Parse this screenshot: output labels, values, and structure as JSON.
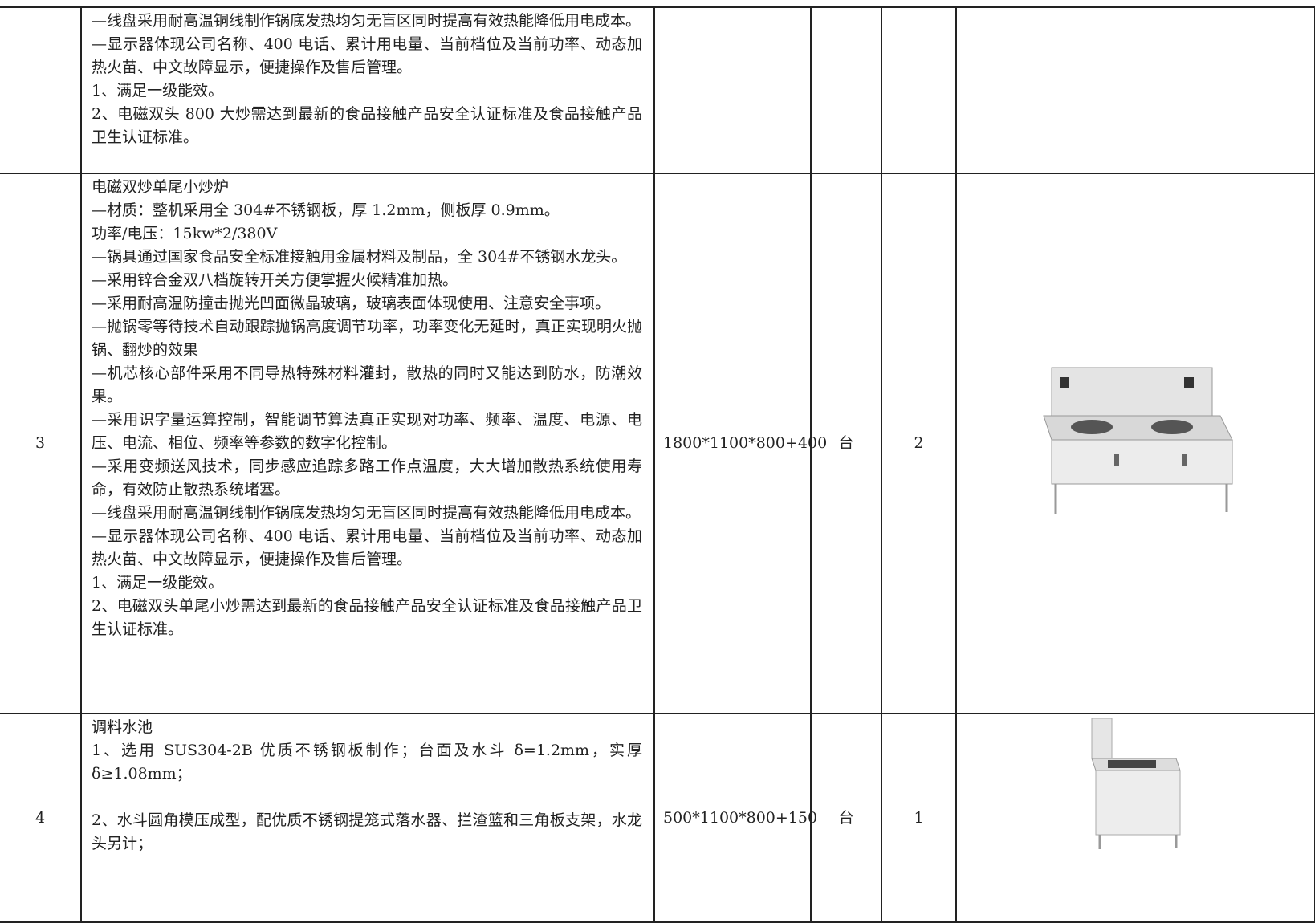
{
  "table": {
    "rows": [
      {
        "description": [
          "—线盘采用耐高温铜线制作锅底发热均匀无盲区同时提高有效热能降低用电成本。",
          "—显示器体现公司名称、400 电话、累计用电量、当前档位及当前功率、动态加热火苗、中文故障显示，便捷操作及售后管理。",
          "1、满足一级能效。",
          "2、电磁双头 800 大炒需达到最新的食品接触产品安全认证标准及食品接触产品卫生认证标准。"
        ]
      },
      {
        "no": "3",
        "description": [
          "电磁双炒单尾小炒炉",
          "—材质：整机采用全 304#不锈钢板，厚 1.2mm，侧板厚 0.9mm。",
          "功率/电压：15kw*2/380V",
          "—锅具通过国家食品安全标准接触用金属材料及制品，全 304#不锈钢水龙头。",
          "—采用锌合金双八档旋转开关方便掌握火候精准加热。",
          "—采用耐高温防撞击抛光凹面微晶玻璃，玻璃表面体现使用、注意安全事项。",
          "—抛锅零等待技术自动跟踪抛锅高度调节功率，功率变化无延时，真正实现明火抛锅、翻炒的效果",
          "—机芯核心部件采用不同导热特殊材料灌封，散热的同时又能达到防水，防潮效果。",
          "—采用识字量运算控制，智能调节算法真正实现对功率、频率、温度、电源、电压、电流、相位、频率等参数的数字化控制。",
          "—采用变频送风技术，同步感应追踪多路工作点温度，大大增加散热系统使用寿命，有效防止散热系统堵塞。",
          "—线盘采用耐高温铜线制作锅底发热均匀无盲区同时提高有效热能降低用电成本。",
          "—显示器体现公司名称、400 电话、累计用电量、当前档位及当前功率、动态加热火苗、中文故障显示，便捷操作及售后管理。",
          "1、满足一级能效。",
          "2、电磁双头单尾小炒需达到最新的食品接触产品安全认证标准及食品接触产品卫生认证标准。"
        ],
        "size": "1800*1100*800+400",
        "unit": "台",
        "qty": "2"
      },
      {
        "no": "4",
        "description": [
          "调料水池",
          "1、选用 SUS304-2B 优质不锈钢板制作；台面及水斗 δ=1.2mm，实厚 δ≥1.08mm；",
          "2、水斗圆角模压成型，配优质不锈钢提笼式落水器、拦渣篮和三角板支架，水龙头另计；"
        ],
        "size": "500*1100*800+150",
        "unit": "台",
        "qty": "1"
      }
    ]
  }
}
